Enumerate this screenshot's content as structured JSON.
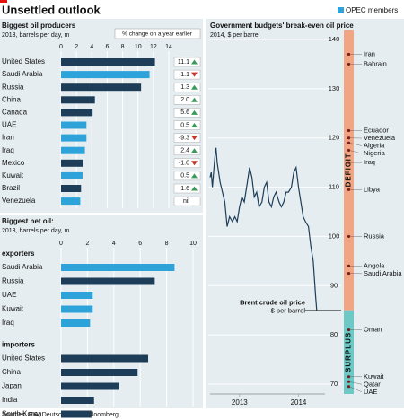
{
  "title": "Unsettled outlook",
  "legend": {
    "label": "OPEC members",
    "color": "#2ea3da"
  },
  "source": "Sources: EIA; Deutsche Bank; Bloomberg",
  "chart_data": [
    {
      "type": "hbar",
      "title": "Biggest oil producers",
      "subtitle": "2013, barrels per day, m",
      "categories": [
        "United States",
        "Saudi Arabia",
        "Russia",
        "China",
        "Canada",
        "UAE",
        "Iran",
        "Iraq",
        "Mexico",
        "Kuwait",
        "Brazil",
        "Venezuela"
      ],
      "values": [
        12.2,
        11.5,
        10.4,
        4.4,
        4.1,
        3.3,
        3.3,
        3.1,
        2.9,
        2.8,
        2.6,
        2.5
      ],
      "colors": [
        "#1d3d58",
        "#2ea3da",
        "#1d3d58",
        "#1d3d58",
        "#1d3d58",
        "#2ea3da",
        "#2ea3da",
        "#2ea3da",
        "#1d3d58",
        "#2ea3da",
        "#1d3d58",
        "#2ea3da"
      ],
      "xlim": [
        0,
        14
      ],
      "xticks": [
        0,
        2,
        4,
        6,
        8,
        10,
        12,
        14
      ],
      "grid": true,
      "change": {
        "title": "% change on a year earlier",
        "values": [
          11.1,
          -1.1,
          1.3,
          2.0,
          5.6,
          0.5,
          -9.3,
          2.4,
          -1.0,
          0.5,
          1.6,
          0
        ],
        "value_labels": [
          "11.1",
          "-1.1",
          "1.3",
          "2.0",
          "5.6",
          "0.5",
          "-9.3",
          "2.4",
          "-1.0",
          "0.5",
          "1.6",
          "nil"
        ],
        "up_color": "#3a9a5a",
        "down_color": "#d0302a"
      }
    },
    {
      "type": "hbar-groups",
      "title": "Biggest net oil:",
      "subtitle": "2013, barrels per day, m",
      "groups": [
        {
          "label": "exporters",
          "categories": [
            "Saudi Arabia",
            "Russia",
            "UAE",
            "Kuwait",
            "Iraq"
          ],
          "values": [
            8.6,
            7.1,
            2.4,
            2.4,
            2.2
          ],
          "colors": [
            "#2ea3da",
            "#1d3d58",
            "#2ea3da",
            "#2ea3da",
            "#2ea3da"
          ]
        },
        {
          "label": "importers",
          "categories": [
            "United States",
            "China",
            "Japan",
            "India",
            "South Korea"
          ],
          "values": [
            6.6,
            5.8,
            4.4,
            2.5,
            2.3
          ],
          "colors": [
            "#1d3d58",
            "#1d3d58",
            "#1d3d58",
            "#1d3d58",
            "#1d3d58"
          ]
        }
      ],
      "xlim": [
        0,
        10
      ],
      "xticks": [
        0,
        2,
        4,
        6,
        8,
        10
      ],
      "grid": true
    },
    {
      "type": "line",
      "title": "Government budgets' break-even oil price",
      "subtitle": "2014, $ per barrel",
      "x": [
        2013.0,
        2013.02,
        2013.04,
        2013.08,
        2013.1,
        2013.12,
        2013.17,
        2013.21,
        2013.25,
        2013.29,
        2013.33,
        2013.38,
        2013.42,
        2013.46,
        2013.5,
        2013.54,
        2013.58,
        2013.62,
        2013.67,
        2013.71,
        2013.75,
        2013.79,
        2013.83,
        2013.88,
        2013.92,
        2013.96,
        2014.0,
        2014.04,
        2014.08,
        2014.12,
        2014.17,
        2014.21,
        2014.25,
        2014.29,
        2014.33,
        2014.38,
        2014.42,
        2014.46,
        2014.5,
        2014.54,
        2014.58,
        2014.62,
        2014.67,
        2014.71,
        2014.75,
        2014.79,
        2014.81
      ],
      "series": [
        {
          "color": "#1d3d58",
          "values": [
            112,
            113,
            110,
            116,
            118,
            115,
            111,
            109,
            107,
            102,
            104,
            103,
            104,
            103,
            106,
            108,
            107,
            110,
            114,
            112,
            108,
            109,
            106,
            107,
            110,
            111,
            107,
            106,
            108,
            109,
            107,
            106,
            107,
            109,
            109,
            110,
            113,
            114,
            110,
            107,
            104,
            103,
            102,
            98,
            95,
            88,
            85
          ]
        }
      ],
      "xlim": [
        2013,
        2014.95
      ],
      "xticks": [
        {
          "value": 2013.5,
          "label": "2013"
        },
        {
          "value": 2014.5,
          "label": "2014"
        }
      ],
      "ylim": [
        68,
        142
      ],
      "yticks": [
        70,
        80,
        90,
        100,
        110,
        120,
        130,
        140
      ],
      "grid": true,
      "annotation": [
        "Brent crude oil price",
        "$ per barrel"
      ],
      "zones": [
        {
          "label": "DEFICIT",
          "color": "#f2a582",
          "text_color": "#c0392b"
        },
        {
          "label": "SURPLUS",
          "color": "#6cc9c5",
          "text_color": "#1b6f70"
        }
      ],
      "breakeven": {
        "categories": [
          "Iran",
          "Bahrain",
          "Ecuador",
          "Venezuela",
          "Algeria",
          "Nigeria",
          "Iraq",
          "Libya",
          "Russia",
          "Angola",
          "Saudi Arabia",
          "Oman",
          "Kuwait",
          "Qatar",
          "UAE"
        ],
        "values": [
          137,
          135,
          121.5,
          120,
          119,
          117.5,
          115,
          109.5,
          100,
          94,
          92.5,
          81,
          71.5,
          70.5,
          69.5
        ],
        "colors": [
          "#2ea3da",
          "#111111",
          "#2ea3da",
          "#2ea3da",
          "#2ea3da",
          "#2ea3da",
          "#2ea3da",
          "#2ea3da",
          "#111111",
          "#2ea3da",
          "#2ea3da",
          "#111111",
          "#2ea3da",
          "#2ea3da",
          "#2ea3da"
        ]
      }
    }
  ]
}
